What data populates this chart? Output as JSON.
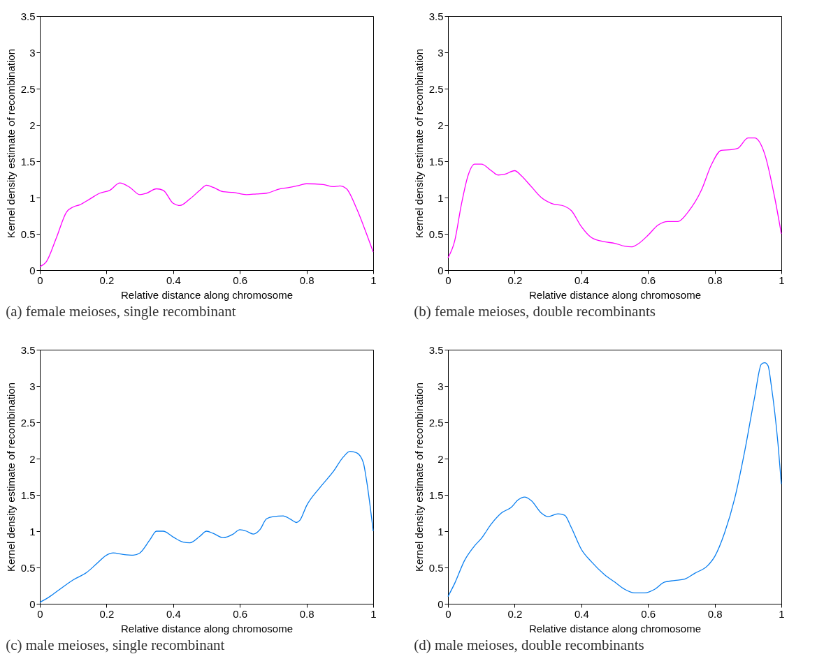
{
  "chart_data": [
    {
      "type": "line",
      "title": "(a) female meioses, single recombinant",
      "xlabel": "Relative distance along chromosome",
      "ylabel": "Kernel density estimate of recombination",
      "xlim": [
        0,
        1
      ],
      "xticks": [
        0,
        0.2,
        0.4,
        0.6,
        0.8,
        1
      ],
      "ylim": [
        0,
        3.5
      ],
      "yticks": [
        0,
        0.5,
        1,
        1.5,
        2,
        2.5,
        3,
        3.5
      ],
      "grid": false,
      "series": [
        {
          "color": "#ff00ff",
          "x": [
            0,
            0.02,
            0.05,
            0.08,
            0.1,
            0.12,
            0.15,
            0.18,
            0.21,
            0.24,
            0.27,
            0.3,
            0.32,
            0.35,
            0.37,
            0.4,
            0.42,
            0.45,
            0.48,
            0.5,
            0.52,
            0.55,
            0.58,
            0.62,
            0.65,
            0.68,
            0.72,
            0.75,
            0.78,
            0.8,
            0.85,
            0.88,
            0.9,
            0.92,
            0.95,
            0.98,
            1
          ],
          "values": [
            0.05,
            0.12,
            0.45,
            0.8,
            0.87,
            0.9,
            0.98,
            1.06,
            1.1,
            1.2,
            1.14,
            1.04,
            1.06,
            1.12,
            1.1,
            0.92,
            0.89,
            0.98,
            1.1,
            1.17,
            1.14,
            1.08,
            1.07,
            1.04,
            1.05,
            1.06,
            1.12,
            1.14,
            1.17,
            1.19,
            1.18,
            1.15,
            1.16,
            1.12,
            0.85,
            0.5,
            0.25
          ]
        }
      ]
    },
    {
      "type": "line",
      "title": "(b) female meioses, double recombinants",
      "xlabel": "Relative distance along chromosome",
      "ylabel": "Kernel density estimate of recombination",
      "xlim": [
        0,
        1
      ],
      "xticks": [
        0,
        0.2,
        0.4,
        0.6,
        0.8,
        1
      ],
      "ylim": [
        0,
        3.5
      ],
      "yticks": [
        0,
        0.5,
        1,
        1.5,
        2,
        2.5,
        3,
        3.5
      ],
      "grid": false,
      "series": [
        {
          "color": "#ff00ff",
          "x": [
            0,
            0.02,
            0.04,
            0.06,
            0.08,
            0.1,
            0.13,
            0.15,
            0.17,
            0.2,
            0.22,
            0.25,
            0.28,
            0.31,
            0.35,
            0.37,
            0.4,
            0.43,
            0.47,
            0.5,
            0.53,
            0.55,
            0.57,
            0.6,
            0.63,
            0.66,
            0.69,
            0.72,
            0.76,
            0.79,
            0.82,
            0.85,
            0.87,
            0.9,
            0.92,
            0.95,
            0.98,
            1
          ],
          "values": [
            0.17,
            0.4,
            0.9,
            1.3,
            1.46,
            1.46,
            1.37,
            1.31,
            1.32,
            1.37,
            1.3,
            1.15,
            1.0,
            0.92,
            0.88,
            0.82,
            0.6,
            0.45,
            0.39,
            0.37,
            0.33,
            0.32,
            0.36,
            0.48,
            0.62,
            0.67,
            0.67,
            0.8,
            1.1,
            1.45,
            1.65,
            1.66,
            1.68,
            1.82,
            1.82,
            1.6,
            1.0,
            0.5
          ]
        }
      ]
    },
    {
      "type": "line",
      "title": "(c) male meioses, single recombinant",
      "xlabel": "Relative distance along chromosome",
      "ylabel": "Kernel density estimate of recombination",
      "xlim": [
        0,
        1
      ],
      "xticks": [
        0,
        0.2,
        0.4,
        0.6,
        0.8,
        1
      ],
      "ylim": [
        0,
        3.5
      ],
      "yticks": [
        0,
        0.5,
        1,
        1.5,
        2,
        2.5,
        3,
        3.5
      ],
      "grid": false,
      "series": [
        {
          "color": "#0a7ff0",
          "x": [
            0,
            0.03,
            0.06,
            0.1,
            0.14,
            0.17,
            0.2,
            0.22,
            0.25,
            0.28,
            0.3,
            0.33,
            0.35,
            0.37,
            0.4,
            0.43,
            0.45,
            0.48,
            0.5,
            0.52,
            0.55,
            0.58,
            0.6,
            0.62,
            0.64,
            0.66,
            0.68,
            0.7,
            0.73,
            0.75,
            0.77,
            0.78,
            0.8,
            0.84,
            0.88,
            0.91,
            0.93,
            0.95,
            0.97,
            0.98,
            1
          ],
          "values": [
            0.02,
            0.1,
            0.2,
            0.33,
            0.43,
            0.55,
            0.67,
            0.7,
            0.68,
            0.67,
            0.7,
            0.88,
            1.0,
            1.0,
            0.92,
            0.85,
            0.84,
            0.93,
            1.0,
            0.97,
            0.91,
            0.96,
            1.02,
            1.0,
            0.96,
            1.02,
            1.17,
            1.2,
            1.21,
            1.17,
            1.12,
            1.15,
            1.35,
            1.6,
            1.82,
            2.02,
            2.1,
            2.08,
            1.95,
            1.7,
            1.0
          ]
        }
      ]
    },
    {
      "type": "line",
      "title": "(d) male meioses, double recombinants",
      "xlabel": "Relative distance along chromosome",
      "ylabel": "Kernel density estimate of recombination",
      "xlim": [
        0,
        1
      ],
      "xticks": [
        0,
        0.2,
        0.4,
        0.6,
        0.8,
        1
      ],
      "ylim": [
        0,
        3.5
      ],
      "yticks": [
        0,
        0.5,
        1,
        1.5,
        2,
        2.5,
        3,
        3.5
      ],
      "grid": false,
      "series": [
        {
          "color": "#0a7ff0",
          "x": [
            0,
            0.02,
            0.05,
            0.08,
            0.1,
            0.13,
            0.16,
            0.19,
            0.21,
            0.23,
            0.25,
            0.28,
            0.3,
            0.33,
            0.35,
            0.37,
            0.4,
            0.43,
            0.47,
            0.5,
            0.53,
            0.56,
            0.59,
            0.62,
            0.65,
            0.68,
            0.71,
            0.74,
            0.78,
            0.8,
            0.83,
            0.86,
            0.89,
            0.92,
            0.94,
            0.95,
            0.96,
            0.97,
            0.99,
            1
          ],
          "values": [
            0.1,
            0.28,
            0.6,
            0.8,
            0.9,
            1.1,
            1.25,
            1.33,
            1.43,
            1.47,
            1.42,
            1.25,
            1.2,
            1.24,
            1.22,
            1.05,
            0.75,
            0.58,
            0.4,
            0.3,
            0.2,
            0.15,
            0.15,
            0.2,
            0.3,
            0.32,
            0.34,
            0.42,
            0.53,
            0.65,
            0.98,
            1.45,
            2.1,
            2.85,
            3.3,
            3.32,
            3.28,
            3.0,
            2.2,
            1.65
          ]
        }
      ]
    }
  ]
}
